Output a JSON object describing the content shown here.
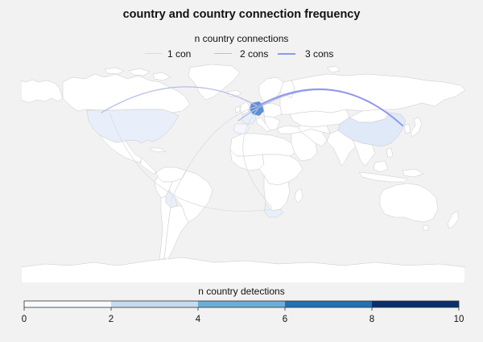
{
  "title": "country and country connection frequency",
  "connection_legend": {
    "title": "n country connections",
    "items": [
      {
        "label": "1 con",
        "color": "#d9dcdf"
      },
      {
        "label": "2 cons",
        "color": "#b7bde8"
      },
      {
        "label": "3 cons",
        "color": "#8f98ea"
      }
    ]
  },
  "detection_legend": {
    "title": "n country detections",
    "ticks": [
      "0",
      "2",
      "4",
      "6",
      "8",
      "10"
    ],
    "range": [
      0,
      10
    ],
    "bins": [
      {
        "from": 0,
        "to": 2,
        "color": "#f7fbff"
      },
      {
        "from": 2,
        "to": 4,
        "color": "#c6dbef"
      },
      {
        "from": 4,
        "to": 6,
        "color": "#6baed6"
      },
      {
        "from": 6,
        "to": 8,
        "color": "#2171b5"
      },
      {
        "from": 8,
        "to": 10,
        "color": "#08306b"
      }
    ]
  },
  "map": {
    "land_color": "#ffffff",
    "border_color": "#c8c8c8",
    "ocean_color": "#f2f2f2",
    "countries": [
      {
        "name": "Germany",
        "detections": 9
      },
      {
        "name": "China",
        "detections": 5
      },
      {
        "name": "United States",
        "detections": 1
      },
      {
        "name": "Greenland",
        "detections": 1
      },
      {
        "name": "Bolivia",
        "detections": 1
      },
      {
        "name": "South Africa",
        "detections": 1
      },
      {
        "name": "Spain",
        "detections": 3
      },
      {
        "name": "France",
        "detections": 4
      }
    ],
    "connections": [
      {
        "from": "United States",
        "to": "Germany",
        "n": 2
      },
      {
        "from": "Germany",
        "to": "China",
        "n": 3
      },
      {
        "from": "Spain",
        "to": "China",
        "n": 2
      },
      {
        "from": "Bolivia",
        "to": "Germany",
        "n": 1
      },
      {
        "from": "South Africa",
        "to": "Germany",
        "n": 1
      },
      {
        "from": "United States",
        "to": "South Africa",
        "n": 1
      }
    ]
  }
}
